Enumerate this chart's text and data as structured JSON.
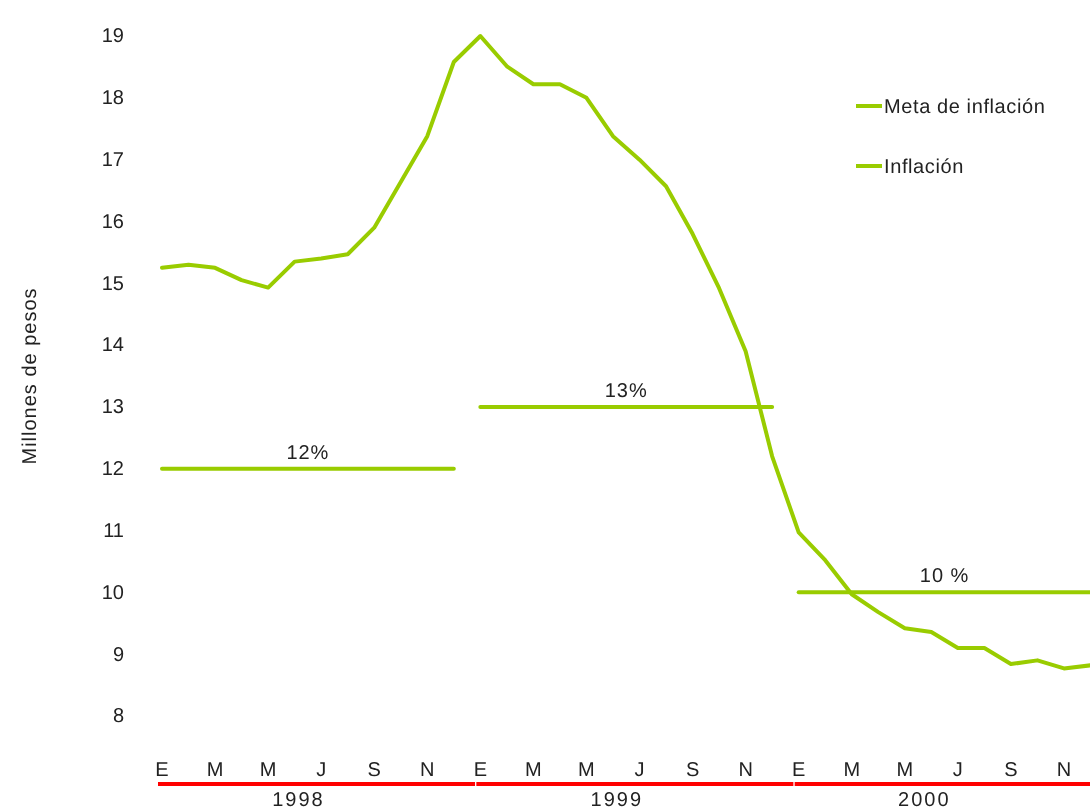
{
  "chart_data": {
    "type": "line",
    "ylabel": "Millones de pesos",
    "categories": [
      "E",
      null,
      "M",
      null,
      "M",
      null,
      "J",
      null,
      "S",
      null,
      "N",
      null,
      "E",
      null,
      "M",
      null,
      "M",
      null,
      "J",
      null,
      "S",
      null,
      "N",
      null,
      "E",
      null,
      "M",
      null,
      "M",
      null,
      "J",
      null,
      "S",
      null,
      "N",
      null
    ],
    "series": [
      {
        "name": "Meta de inflación",
        "color": "#99cc00",
        "values": [
          12,
          12,
          12,
          12,
          12,
          12,
          12,
          12,
          12,
          12,
          12,
          12,
          null,
          null,
          null,
          null,
          null,
          null,
          null,
          null,
          null,
          null,
          null,
          null,
          null,
          null,
          null,
          null,
          null,
          null,
          null,
          null,
          null,
          null,
          null,
          null
        ]
      },
      {
        "color": "#99cc00",
        "values": [
          null,
          null,
          null,
          null,
          null,
          null,
          null,
          null,
          null,
          null,
          null,
          null,
          13,
          13,
          13,
          13,
          13,
          13,
          13,
          13,
          13,
          13,
          13,
          13,
          null,
          null,
          null,
          null,
          null,
          null,
          null,
          null,
          null,
          null,
          null,
          null
        ]
      },
      {
        "color": "#99cc00",
        "values": [
          null,
          null,
          null,
          null,
          null,
          null,
          null,
          null,
          null,
          null,
          null,
          null,
          null,
          null,
          null,
          null,
          null,
          null,
          null,
          null,
          null,
          null,
          null,
          null,
          10,
          10,
          10,
          10,
          10,
          10,
          10,
          10,
          10,
          10,
          10,
          10
        ]
      },
      {
        "name": "Inflación",
        "color": "#99cc00",
        "values": [
          15.25,
          15.3,
          15.25,
          15.05,
          14.93,
          15.35,
          15.4,
          15.47,
          15.9,
          16.64,
          17.38,
          18.58,
          19.0,
          18.51,
          18.22,
          18.22,
          18.0,
          17.38,
          17.0,
          16.57,
          15.8,
          14.92,
          13.9,
          12.2,
          10.97,
          10.52,
          9.97,
          9.68,
          9.42,
          9.36,
          9.1,
          9.1,
          8.84,
          8.9,
          8.77,
          8.82
        ]
      }
    ],
    "ylim": [
      8,
      19
    ],
    "yticks": [
      8,
      9,
      10,
      11,
      12,
      13,
      14,
      15,
      16,
      17,
      18,
      19
    ],
    "annotations": [
      {
        "text": "12%",
        "y": 12
      },
      {
        "text": "13%",
        "y": 13
      },
      {
        "text": "10 %",
        "y": 10
      },
      "1998",
      "1999",
      "2000"
    ],
    "legend": "top right",
    "grid": false,
    "line_style": "solid",
    "marker": "none"
  }
}
